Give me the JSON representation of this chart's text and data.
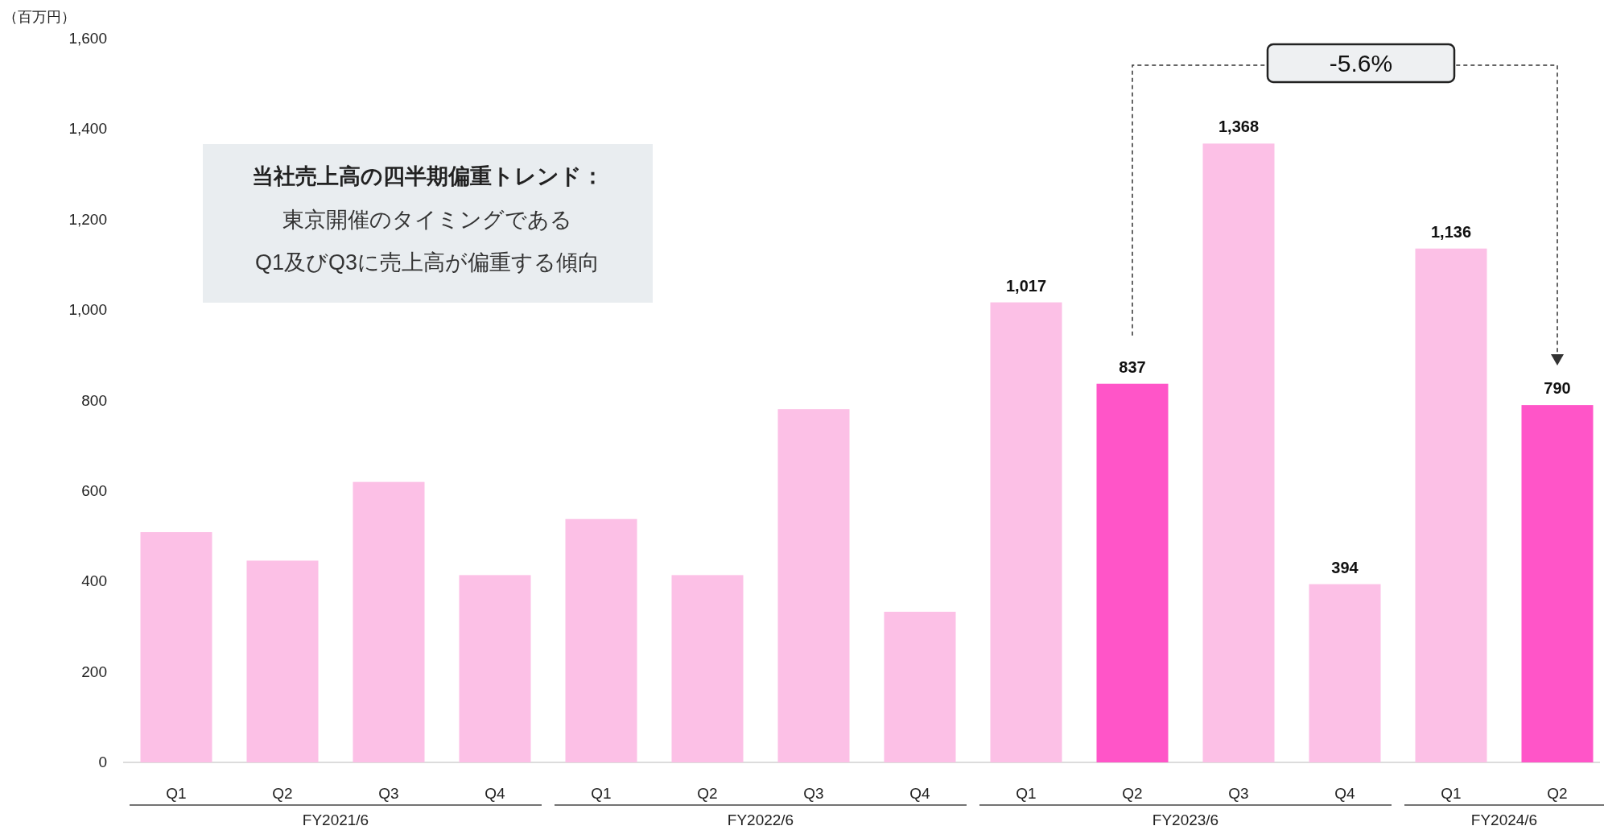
{
  "chart_data": {
    "type": "bar",
    "ylabel": "（百万円）",
    "categories": [
      "Q1",
      "Q2",
      "Q3",
      "Q4",
      "Q1",
      "Q2",
      "Q3",
      "Q4",
      "Q1",
      "Q2",
      "Q3",
      "Q4",
      "Q1",
      "Q2"
    ],
    "values": [
      509,
      446,
      620,
      414,
      538,
      414,
      781,
      333,
      1017,
      837,
      1368,
      394,
      1136,
      790
    ],
    "colors": [
      "#fcc0e6",
      "#fcc0e6",
      "#fcc0e6",
      "#fcc0e6",
      "#fcc0e6",
      "#fcc0e6",
      "#fcc0e6",
      "#fcc0e6",
      "#fcc0e6",
      "#ff55c8",
      "#fcc0e6",
      "#fcc0e6",
      "#fcc0e6",
      "#ff55c8"
    ],
    "value_labels": [
      null,
      null,
      null,
      null,
      null,
      null,
      null,
      null,
      "1,017",
      "837",
      "1,368",
      "394",
      "1,136",
      "790"
    ],
    "ylim": [
      0,
      1600
    ],
    "yticks": [
      0,
      200,
      400,
      600,
      800,
      {
        "value": 1000,
        "label": "1,000"
      },
      {
        "value": 1200,
        "label": "1,200"
      },
      {
        "value": 1400,
        "label": "1,400"
      },
      {
        "value": 1600,
        "label": "1,600"
      }
    ],
    "grid": false,
    "annotations": [
      "-5.6%",
      "当社売上高の四半期偏重トレンド：",
      "東京開催のタイミングである",
      "Q1及びQ3に売上高が偏重する傾向",
      "FY2021/6",
      "FY2022/6",
      "FY2023/6",
      "FY2024/6"
    ]
  }
}
